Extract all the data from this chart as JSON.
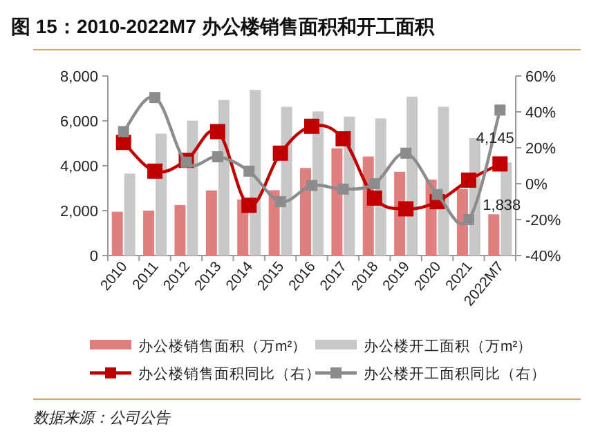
{
  "chart_data": {
    "type": "bar",
    "title": "图 15：2010-2022M7 办公楼销售面积和开工面积",
    "categories": [
      "2010",
      "2011",
      "2012",
      "2013",
      "2014",
      "2015",
      "2016",
      "2017",
      "2018",
      "2019",
      "2020",
      "2021",
      "2022M7"
    ],
    "series": [
      {
        "name": "办公楼销售面积（万m²）",
        "color": "#e07f7f",
        "values": [
          1950,
          2000,
          2250,
          2900,
          2500,
          2910,
          3900,
          4780,
          4410,
          3730,
          3380,
          2970,
          1838
        ],
        "value_labels": [
          null,
          null,
          null,
          null,
          null,
          null,
          null,
          null,
          null,
          null,
          null,
          null,
          "1,838"
        ]
      },
      {
        "name": "办公楼开工面积（万m²）",
        "color": "#c8c8c8",
        "values": [
          3650,
          5430,
          6010,
          6930,
          7380,
          6630,
          6420,
          6190,
          6110,
          7080,
          6630,
          5230,
          4145
        ],
        "value_labels": [
          null,
          null,
          null,
          null,
          null,
          null,
          null,
          null,
          null,
          null,
          null,
          null,
          "4,145"
        ]
      },
      {
        "name": "办公楼销售面积同比（右）",
        "type": "line",
        "axis": "y2",
        "color": "#c00000",
        "values": [
          23,
          7,
          13,
          29,
          -12,
          17,
          32,
          25,
          -8,
          -14,
          -10,
          2,
          11
        ]
      },
      {
        "name": "办公楼开工面积同比（右）",
        "type": "line",
        "axis": "y2",
        "color": "#8c8c8c",
        "values": [
          29,
          48,
          12,
          15,
          7,
          -10,
          -1,
          -3,
          0,
          17,
          -6,
          -20,
          41
        ]
      }
    ],
    "marker": "square",
    "ylim": [
      0,
      8000
    ],
    "yticks": [
      0,
      {
        "value": 2000,
        "label": "2,000"
      },
      {
        "value": 4000,
        "label": "4,000"
      },
      {
        "value": 6000,
        "label": "6,000"
      },
      {
        "value": 8000,
        "label": "8,000"
      }
    ],
    "y2lim": [
      -40,
      60
    ],
    "y2ticks": [
      {
        "value": -40,
        "label": "-40%"
      },
      {
        "value": -20,
        "label": "-20%"
      },
      {
        "value": 0,
        "label": "0%"
      },
      {
        "value": 20,
        "label": "20%"
      },
      {
        "value": 40,
        "label": "40%"
      },
      {
        "value": 60,
        "label": "60%"
      }
    ],
    "legend": "bottom",
    "annotations": [
      "数据来源：公司公告"
    ]
  }
}
